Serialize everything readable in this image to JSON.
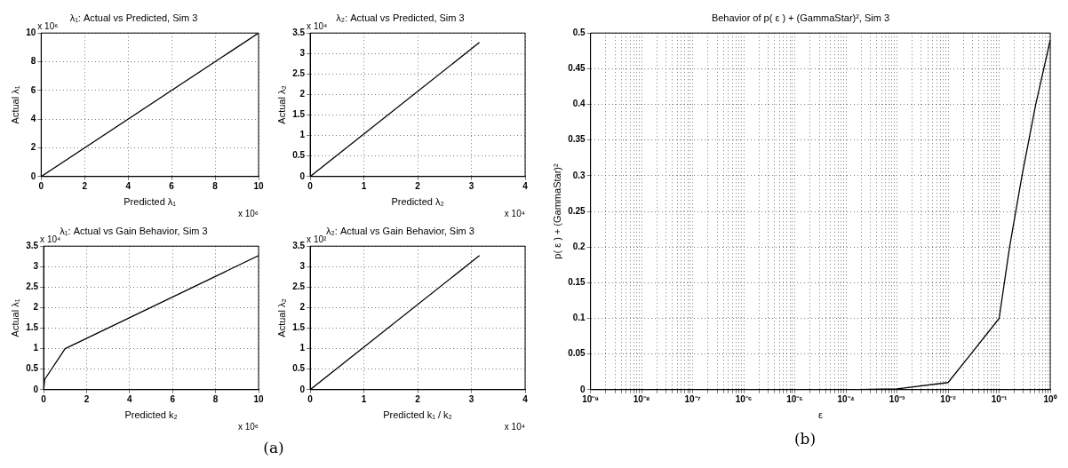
{
  "chart_data": [
    {
      "type": "line",
      "title": "λ₁: Actual vs Predicted, Sim 3",
      "xlabel": "Predicted λ₁",
      "ylabel": "Actual λ₁",
      "x": [
        0,
        10
      ],
      "values": [
        0,
        10
      ],
      "color": "#000000",
      "xlim": [
        0,
        10
      ],
      "xticks": [
        0,
        2,
        4,
        6,
        8,
        10
      ],
      "ylim": [
        0,
        10
      ],
      "yticks": [
        0,
        2,
        4,
        6,
        8,
        10
      ],
      "grid": true,
      "marker": "none",
      "line_style": "solid",
      "annotations": [
        "x 10⁶",
        "x 10⁶"
      ]
    },
    {
      "type": "line",
      "title": "λ₂: Actual vs Predicted, Sim 3",
      "xlabel": "Predicted λ₂",
      "ylabel": "Actual λ₂",
      "x": [
        0,
        3.15
      ],
      "values": [
        0,
        3.27
      ],
      "color": "#000000",
      "xlim": [
        0,
        4
      ],
      "xticks": [
        0,
        1,
        2,
        3,
        4
      ],
      "ylim": [
        0,
        3.5
      ],
      "yticks": [
        0,
        0.5,
        1,
        1.5,
        2,
        2.5,
        3,
        3.5
      ],
      "grid": true,
      "marker": "none",
      "line_style": "solid",
      "annotations": [
        "x 10⁴",
        "x 10⁴"
      ]
    },
    {
      "type": "line",
      "title": "λ₁: Actual vs Gain Behavior, Sim 3",
      "xlabel": "Predicted k₂",
      "ylabel": "Actual λ₁",
      "x": [
        0,
        0.05,
        1,
        10
      ],
      "values": [
        0,
        0.25,
        1,
        3.27
      ],
      "color": "#000000",
      "xlim": [
        0,
        10
      ],
      "xticks": [
        0,
        2,
        4,
        6,
        8,
        10
      ],
      "ylim": [
        0,
        3.5
      ],
      "yticks": [
        0,
        0.5,
        1,
        1.5,
        2,
        2.5,
        3,
        3.5
      ],
      "grid": true,
      "marker": "none",
      "line_style": "solid",
      "annotations": [
        "x 10⁴",
        "x 10⁶",
        "(a)"
      ]
    },
    {
      "type": "line",
      "title": "λ₂: Actual vs Gain Behavior, Sim 3",
      "xlabel": "Predicted k₁ / k₂",
      "ylabel": "Actual λ₂",
      "x": [
        0,
        3.15
      ],
      "values": [
        0,
        3.27
      ],
      "color": "#000000",
      "xlim": [
        0,
        4
      ],
      "xticks": [
        0,
        1,
        2,
        3,
        4
      ],
      "ylim": [
        0,
        3.5
      ],
      "yticks": [
        0,
        0.5,
        1,
        1.5,
        2,
        2.5,
        3,
        3.5
      ],
      "grid": true,
      "marker": "none",
      "line_style": "solid",
      "annotations": [
        "x 10²",
        "x 10⁴"
      ]
    },
    {
      "type": "line",
      "title": "Behavior of p( ε ) + (GammaStar)², Sim 3",
      "xlabel": "ε",
      "ylabel": "p( ε ) + (GammaStar)²",
      "x": [
        1e-09,
        1e-08,
        1e-07,
        1e-06,
        1e-05,
        0.0001,
        0.001,
        0.01,
        0.028,
        0.1,
        0.16,
        0.28,
        0.52,
        1
      ],
      "values": [
        0,
        0,
        0,
        0,
        0,
        0,
        0.001,
        0.01,
        0.05,
        0.1,
        0.2,
        0.3,
        0.4,
        0.49
      ],
      "color": "#000000",
      "log": "x",
      "xlim": [
        1e-09,
        1
      ],
      "xticks": [
        {
          "value": 1e-09,
          "label": "10⁻⁹"
        },
        {
          "value": 2e-09,
          "label": null
        },
        {
          "value": 3e-09,
          "label": null
        },
        {
          "value": 4e-09,
          "label": null
        },
        {
          "value": 5e-09,
          "label": null
        },
        {
          "value": 6e-09,
          "label": null
        },
        {
          "value": 7e-09,
          "label": null
        },
        {
          "value": 8e-09,
          "label": null
        },
        {
          "value": 9e-09,
          "label": null
        },
        {
          "value": 1e-08,
          "label": "10⁻⁸"
        },
        {
          "value": 2e-08,
          "label": null
        },
        {
          "value": 3e-08,
          "label": null
        },
        {
          "value": 4e-08,
          "label": null
        },
        {
          "value": 5e-08,
          "label": null
        },
        {
          "value": 6e-08,
          "label": null
        },
        {
          "value": 7e-08,
          "label": null
        },
        {
          "value": 8e-08,
          "label": null
        },
        {
          "value": 9e-08,
          "label": null
        },
        {
          "value": 1e-07,
          "label": "10⁻⁷"
        },
        {
          "value": 2e-07,
          "label": null
        },
        {
          "value": 3e-07,
          "label": null
        },
        {
          "value": 4e-07,
          "label": null
        },
        {
          "value": 5e-07,
          "label": null
        },
        {
          "value": 6e-07,
          "label": null
        },
        {
          "value": 7e-07,
          "label": null
        },
        {
          "value": 8e-07,
          "label": null
        },
        {
          "value": 9e-07,
          "label": null
        },
        {
          "value": 1e-06,
          "label": "10⁻⁶"
        },
        {
          "value": 2e-06,
          "label": null
        },
        {
          "value": 3e-06,
          "label": null
        },
        {
          "value": 4e-06,
          "label": null
        },
        {
          "value": 5e-06,
          "label": null
        },
        {
          "value": 6e-06,
          "label": null
        },
        {
          "value": 7e-06,
          "label": null
        },
        {
          "value": 8e-06,
          "label": null
        },
        {
          "value": 9e-06,
          "label": null
        },
        {
          "value": 1e-05,
          "label": "10⁻⁵"
        },
        {
          "value": 2e-05,
          "label": null
        },
        {
          "value": 3e-05,
          "label": null
        },
        {
          "value": 4e-05,
          "label": null
        },
        {
          "value": 5e-05,
          "label": null
        },
        {
          "value": 6e-05,
          "label": null
        },
        {
          "value": 7e-05,
          "label": null
        },
        {
          "value": 8e-05,
          "label": null
        },
        {
          "value": 9e-05,
          "label": null
        },
        {
          "value": 0.0001,
          "label": "10⁻⁴"
        },
        {
          "value": 0.0002,
          "label": null
        },
        {
          "value": 0.0003,
          "label": null
        },
        {
          "value": 0.0004,
          "label": null
        },
        {
          "value": 0.0005,
          "label": null
        },
        {
          "value": 0.0006,
          "label": null
        },
        {
          "value": 0.0007,
          "label": null
        },
        {
          "value": 0.0008,
          "label": null
        },
        {
          "value": 0.0009,
          "label": null
        },
        {
          "value": 0.001,
          "label": "10⁻³"
        },
        {
          "value": 0.002,
          "label": null
        },
        {
          "value": 0.003,
          "label": null
        },
        {
          "value": 0.004,
          "label": null
        },
        {
          "value": 0.005,
          "label": null
        },
        {
          "value": 0.006,
          "label": null
        },
        {
          "value": 0.007,
          "label": null
        },
        {
          "value": 0.008,
          "label": null
        },
        {
          "value": 0.009,
          "label": null
        },
        {
          "value": 0.01,
          "label": "10⁻²"
        },
        {
          "value": 0.02,
          "label": null
        },
        {
          "value": 0.03,
          "label": null
        },
        {
          "value": 0.04,
          "label": null
        },
        {
          "value": 0.05,
          "label": null
        },
        {
          "value": 0.06,
          "label": null
        },
        {
          "value": 0.07,
          "label": null
        },
        {
          "value": 0.08,
          "label": null
        },
        {
          "value": 0.09,
          "label": null
        },
        {
          "value": 0.1,
          "label": "10⁻¹"
        },
        {
          "value": 0.2,
          "label": null
        },
        {
          "value": 0.3,
          "label": null
        },
        {
          "value": 0.4,
          "label": null
        },
        {
          "value": 0.5,
          "label": null
        },
        {
          "value": 0.6,
          "label": null
        },
        {
          "value": 0.7,
          "label": null
        },
        {
          "value": 0.8,
          "label": null
        },
        {
          "value": 0.9,
          "label": null
        },
        {
          "value": 1,
          "label": "10⁰"
        }
      ],
      "ylim": [
        0,
        0.5
      ],
      "yticks": [
        0,
        0.05,
        0.1,
        0.15,
        0.2,
        0.25,
        0.3,
        0.35,
        0.4,
        0.45,
        0.5
      ],
      "grid": true,
      "marker": "none",
      "line_style": "solid",
      "annotations": [
        "(b)"
      ]
    }
  ]
}
